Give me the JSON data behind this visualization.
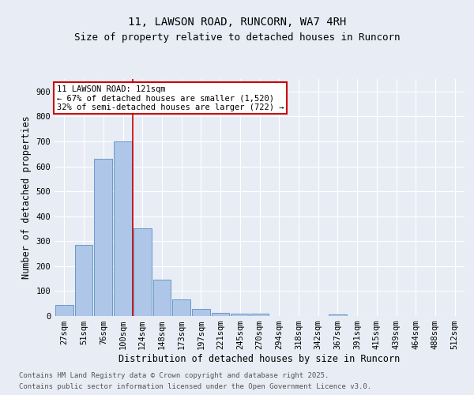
{
  "title_line1": "11, LAWSON ROAD, RUNCORN, WA7 4RH",
  "title_line2": "Size of property relative to detached houses in Runcorn",
  "xlabel": "Distribution of detached houses by size in Runcorn",
  "ylabel": "Number of detached properties",
  "categories": [
    "27sqm",
    "51sqm",
    "76sqm",
    "100sqm",
    "124sqm",
    "148sqm",
    "173sqm",
    "197sqm",
    "221sqm",
    "245sqm",
    "270sqm",
    "294sqm",
    "318sqm",
    "342sqm",
    "367sqm",
    "391sqm",
    "415sqm",
    "439sqm",
    "464sqm",
    "488sqm",
    "512sqm"
  ],
  "values": [
    45,
    285,
    630,
    700,
    350,
    145,
    65,
    30,
    12,
    8,
    10,
    0,
    0,
    0,
    5,
    0,
    0,
    0,
    0,
    0,
    0
  ],
  "bar_color": "#aec6e8",
  "bar_edge_color": "#5a8fc0",
  "annotation_text": "11 LAWSON ROAD: 121sqm\n← 67% of detached houses are smaller (1,520)\n32% of semi-detached houses are larger (722) →",
  "annotation_box_color": "#ffffff",
  "annotation_box_edge_color": "#cc0000",
  "ylim": [
    0,
    950
  ],
  "yticks": [
    0,
    100,
    200,
    300,
    400,
    500,
    600,
    700,
    800,
    900
  ],
  "bg_color": "#e8ecf5",
  "plot_bg_color": "#e8ecf5",
  "grid_color": "#ffffff",
  "footer_line1": "Contains HM Land Registry data © Crown copyright and database right 2025.",
  "footer_line2": "Contains public sector information licensed under the Open Government Licence v3.0.",
  "title_fontsize": 10,
  "subtitle_fontsize": 9,
  "axis_label_fontsize": 8.5,
  "tick_fontsize": 7.5,
  "annotation_fontsize": 7.5,
  "footer_fontsize": 6.5
}
